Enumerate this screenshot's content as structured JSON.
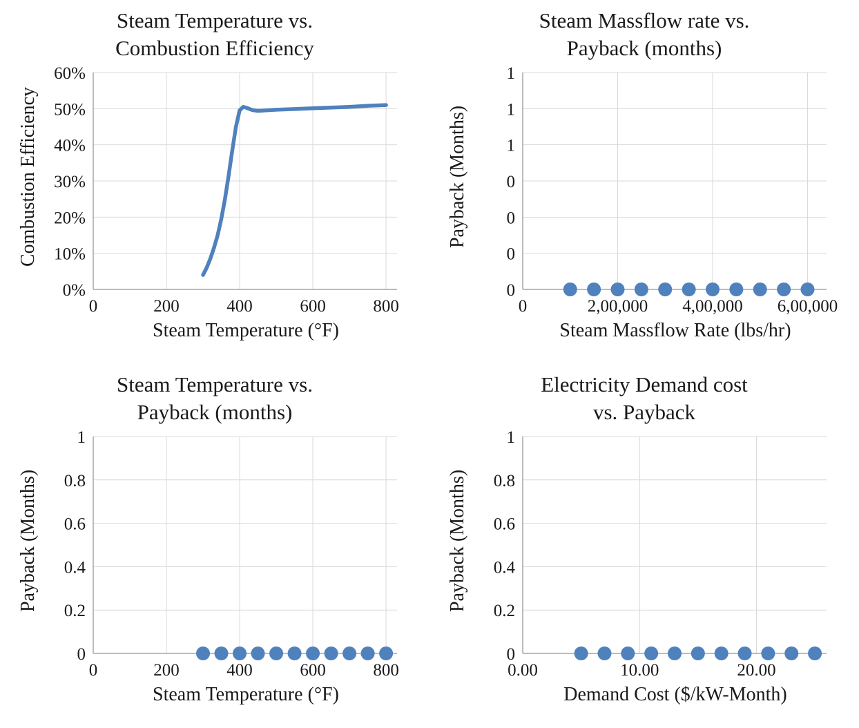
{
  "page": {
    "background": "#ffffff"
  },
  "style": {
    "series_color": "#4f81bd",
    "grid_color": "#d9d9d9",
    "axis_color": "#a6a6a6",
    "text_color": "#1a1a1a",
    "line_width": 5.5,
    "marker_radius": 10
  },
  "chart_data": [
    {
      "type": "line",
      "title": "Steam Temperature vs.\nCombustion Efficiency",
      "xlabel": "Steam Temperature (°F)",
      "ylabel": "Combustion Efficiency",
      "xlim": [
        0,
        830
      ],
      "ylim": [
        0,
        0.6
      ],
      "grid": true,
      "legend": false,
      "x_ticks": [
        0,
        200,
        400,
        600,
        800
      ],
      "x_tick_labels": [
        "0",
        "200",
        "400",
        "600",
        "800"
      ],
      "y_ticks": [
        0,
        0.1,
        0.2,
        0.3,
        0.4,
        0.5,
        0.6
      ],
      "y_tick_labels": [
        "0%",
        "10%",
        "20%",
        "30%",
        "40%",
        "50%",
        "60%"
      ],
      "x": [
        300,
        310,
        320,
        330,
        340,
        350,
        360,
        370,
        380,
        390,
        400,
        410,
        420,
        435,
        450,
        500,
        550,
        600,
        650,
        700,
        750,
        800
      ],
      "y": [
        0.04,
        0.06,
        0.085,
        0.115,
        0.15,
        0.195,
        0.25,
        0.315,
        0.385,
        0.45,
        0.495,
        0.505,
        0.502,
        0.496,
        0.494,
        0.497,
        0.499,
        0.501,
        0.503,
        0.505,
        0.508,
        0.51
      ]
    },
    {
      "type": "scatter",
      "title": "Steam Massflow rate vs.\nPayback (months)",
      "xlabel": "Steam Massflow Rate (lbs/hr)",
      "ylabel": "Payback (Months)",
      "xlim": [
        0,
        640000
      ],
      "ylim": [
        0,
        1
      ],
      "grid": true,
      "legend": false,
      "x_ticks": [
        0,
        200000,
        400000,
        600000
      ],
      "x_tick_labels": [
        "0",
        "2,00,000",
        "4,00,000",
        "6,00,000"
      ],
      "y_ticks": [
        0,
        0.167,
        0.333,
        0.5,
        0.667,
        0.833,
        1
      ],
      "y_tick_labels": [
        "0",
        "0",
        "0",
        "0",
        "1",
        "1",
        "1"
      ],
      "x": [
        100000,
        150000,
        200000,
        250000,
        300000,
        350000,
        400000,
        450000,
        500000,
        550000,
        600000
      ],
      "y": [
        0,
        0,
        0,
        0,
        0,
        0,
        0,
        0,
        0,
        0,
        0
      ]
    },
    {
      "type": "scatter",
      "title": "Steam Temperature vs.\nPayback (months)",
      "xlabel": "Steam Temperature (°F)",
      "ylabel": "Payback (Months)",
      "xlim": [
        0,
        830
      ],
      "ylim": [
        0,
        1
      ],
      "grid": true,
      "legend": false,
      "x_ticks": [
        0,
        200,
        400,
        600,
        800
      ],
      "x_tick_labels": [
        "0",
        "200",
        "400",
        "600",
        "800"
      ],
      "y_ticks": [
        0,
        0.2,
        0.4,
        0.6,
        0.8,
        1
      ],
      "y_tick_labels": [
        "0",
        "0.2",
        "0.4",
        "0.6",
        "0.8",
        "1"
      ],
      "x": [
        300,
        350,
        400,
        450,
        500,
        550,
        600,
        650,
        700,
        750,
        800
      ],
      "y": [
        0,
        0,
        0,
        0,
        0,
        0,
        0,
        0,
        0,
        0,
        0
      ]
    },
    {
      "type": "scatter",
      "title": "Electricity Demand cost\nvs. Payback",
      "xlabel": "Demand Cost ($/kW-Month)",
      "ylabel": "Payback (Months)",
      "xlim": [
        0,
        26
      ],
      "ylim": [
        0,
        1
      ],
      "grid": true,
      "legend": false,
      "x_ticks": [
        0,
        10,
        20
      ],
      "x_tick_labels": [
        "0.00",
        "10.00",
        "20.00"
      ],
      "y_ticks": [
        0,
        0.2,
        0.4,
        0.6,
        0.8,
        1
      ],
      "y_tick_labels": [
        "0",
        "0.2",
        "0.4",
        "0.6",
        "0.8",
        "1"
      ],
      "x": [
        5,
        7,
        9,
        11,
        13,
        15,
        17,
        19,
        21,
        23,
        25
      ],
      "y": [
        0,
        0,
        0,
        0,
        0,
        0,
        0,
        0,
        0,
        0,
        0
      ]
    }
  ]
}
